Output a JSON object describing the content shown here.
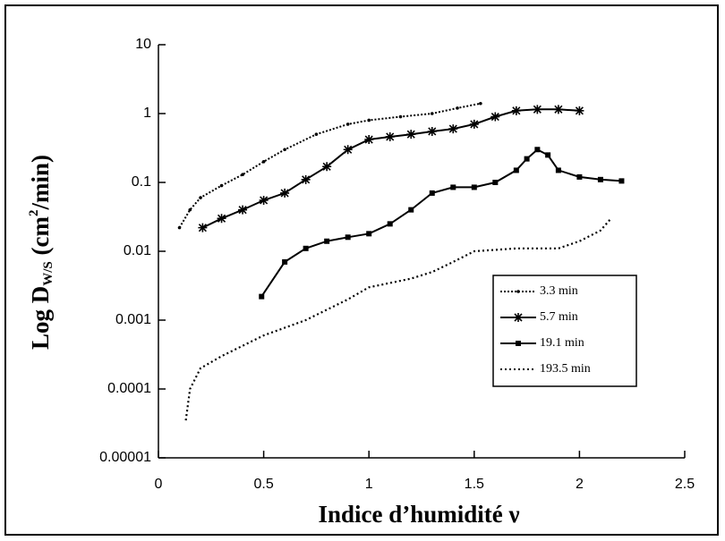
{
  "chart_data": {
    "type": "line",
    "y_label": {
      "main": "Log D",
      "sub": "W/S",
      "mid": " (cm",
      "sup": "2",
      "end": "/min)"
    },
    "x_label": "Indice d’humidité ν",
    "xlim": [
      0,
      2.5
    ],
    "xticks": [
      0,
      0.5,
      1,
      1.5,
      2,
      2.5
    ],
    "ylim": [
      1e-05,
      10
    ],
    "yticks": [
      1e-05,
      0.0001,
      0.001,
      0.01,
      0.1,
      1,
      10
    ],
    "log_y": true,
    "legend": "lower right",
    "series": [
      {
        "name": "3.3 min",
        "color": "#000000",
        "marker": "dot",
        "x": [
          0.1,
          0.15,
          0.2,
          0.3,
          0.4,
          0.5,
          0.6,
          0.75,
          0.9,
          1.0,
          1.15,
          1.3,
          1.42,
          1.53
        ],
        "values": [
          0.022,
          0.04,
          0.06,
          0.09,
          0.13,
          0.2,
          0.3,
          0.5,
          0.7,
          0.8,
          0.9,
          1.0,
          1.2,
          1.4
        ]
      },
      {
        "name": "5.7 min",
        "color": "#000000",
        "marker": "star",
        "x": [
          0.21,
          0.3,
          0.4,
          0.5,
          0.6,
          0.7,
          0.8,
          0.9,
          1.0,
          1.1,
          1.2,
          1.3,
          1.4,
          1.5,
          1.6,
          1.7,
          1.8,
          1.9,
          2.0
        ],
        "values": [
          0.022,
          0.03,
          0.04,
          0.055,
          0.07,
          0.11,
          0.17,
          0.3,
          0.42,
          0.46,
          0.5,
          0.55,
          0.6,
          0.7,
          0.9,
          1.1,
          1.15,
          1.15,
          1.1
        ]
      },
      {
        "name": "19.1 min",
        "color": "#000000",
        "marker": "square",
        "x": [
          0.49,
          0.6,
          0.7,
          0.8,
          0.9,
          1.0,
          1.1,
          1.2,
          1.3,
          1.4,
          1.5,
          1.6,
          1.7,
          1.75,
          1.8,
          1.85,
          1.9,
          2.0,
          2.1,
          2.2
        ],
        "values": [
          0.0022,
          0.007,
          0.011,
          0.014,
          0.016,
          0.018,
          0.025,
          0.04,
          0.07,
          0.085,
          0.085,
          0.1,
          0.15,
          0.22,
          0.3,
          0.25,
          0.15,
          0.12,
          0.11,
          0.105
        ]
      },
      {
        "name": "193.5 min",
        "color": "#000000",
        "marker": "none",
        "x": [
          0.13,
          0.15,
          0.2,
          0.3,
          0.5,
          0.7,
          0.9,
          1.0,
          1.2,
          1.3,
          1.4,
          1.5,
          1.7,
          1.9,
          2.0,
          2.1,
          2.15
        ],
        "values": [
          3.5e-05,
          0.0001,
          0.0002,
          0.0003,
          0.0006,
          0.001,
          0.002,
          0.003,
          0.004,
          0.005,
          0.007,
          0.01,
          0.011,
          0.011,
          0.014,
          0.02,
          0.03
        ]
      }
    ]
  }
}
